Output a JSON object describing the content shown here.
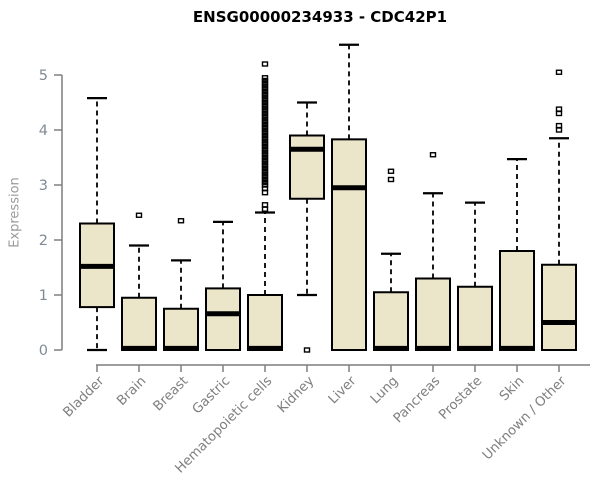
{
  "chart_data": {
    "type": "boxplot",
    "title": "ENSG00000234933 - CDC42P1",
    "xlabel": "",
    "ylabel": "Expression",
    "ylim": [
      0,
      5.6
    ],
    "yticks": [
      0,
      1,
      2,
      3,
      4,
      5
    ],
    "grid": false,
    "legend": "none",
    "box_fill": "#ebe5ca",
    "box_stroke": "#000000",
    "axis_color": "#7f7f7f",
    "tick_label_color": "#808b96",
    "category_label_color": "#7f7f7f",
    "categories": [
      "Bladder",
      "Brain",
      "Breast",
      "Gastric",
      "Hematopoietic cells",
      "Kidney",
      "Liver",
      "Lung",
      "Pancreas",
      "Prostate",
      "Skin",
      "Unknown / Other"
    ],
    "boxes": [
      {
        "category": "Bladder",
        "whisker_low": 0,
        "q1": 0.78,
        "median": 1.52,
        "q3": 2.3,
        "whisker_high": 4.58,
        "outliers": []
      },
      {
        "category": "Brain",
        "whisker_low": 0,
        "q1": 0,
        "median": 0.03,
        "q3": 0.95,
        "whisker_high": 1.9,
        "outliers": [
          2.45
        ]
      },
      {
        "category": "Breast",
        "whisker_low": 0,
        "q1": 0,
        "median": 0.03,
        "q3": 0.75,
        "whisker_high": 1.63,
        "outliers": [
          2.35
        ]
      },
      {
        "category": "Gastric",
        "whisker_low": 0,
        "q1": 0,
        "median": 0.66,
        "q3": 1.12,
        "whisker_high": 2.33,
        "outliers": []
      },
      {
        "category": "Hematopoietic cells",
        "whisker_low": 0,
        "q1": 0,
        "median": 0.03,
        "q3": 1.0,
        "whisker_high": 2.5,
        "outliers": [
          2.56,
          2.64,
          2.86,
          2.94,
          3.0,
          3.05,
          3.1,
          3.15,
          3.2,
          3.25,
          3.3,
          3.35,
          3.4,
          3.45,
          3.5,
          3.55,
          3.6,
          3.65,
          3.7,
          3.75,
          3.8,
          3.85,
          3.9,
          3.95,
          4.0,
          4.05,
          4.1,
          4.15,
          4.2,
          4.25,
          4.3,
          4.35,
          4.4,
          4.45,
          4.5,
          4.55,
          4.6,
          4.65,
          4.7,
          4.75,
          4.8,
          4.85,
          4.9,
          4.95,
          5.2
        ]
      },
      {
        "category": "Kidney",
        "whisker_low": 1.0,
        "q1": 2.75,
        "median": 3.65,
        "q3": 3.9,
        "whisker_high": 4.5,
        "outliers": [
          0.0
        ]
      },
      {
        "category": "Liver",
        "whisker_low": 0,
        "q1": 0,
        "median": 2.95,
        "q3": 3.83,
        "whisker_high": 5.55,
        "outliers": []
      },
      {
        "category": "Lung",
        "whisker_low": 0,
        "q1": 0,
        "median": 0.03,
        "q3": 1.05,
        "whisker_high": 1.75,
        "outliers": [
          3.1,
          3.25
        ]
      },
      {
        "category": "Pancreas",
        "whisker_low": 0,
        "q1": 0,
        "median": 0.03,
        "q3": 1.3,
        "whisker_high": 2.85,
        "outliers": [
          3.55
        ]
      },
      {
        "category": "Prostate",
        "whisker_low": 0,
        "q1": 0,
        "median": 0.03,
        "q3": 1.15,
        "whisker_high": 2.68,
        "outliers": []
      },
      {
        "category": "Skin",
        "whisker_low": 0,
        "q1": 0,
        "median": 0.03,
        "q3": 1.8,
        "whisker_high": 3.47,
        "outliers": []
      },
      {
        "category": "Unknown / Other",
        "whisker_low": 0,
        "q1": 0,
        "median": 0.5,
        "q3": 1.55,
        "whisker_high": 3.85,
        "outliers": [
          4.0,
          4.08,
          4.3,
          4.38,
          5.05
        ]
      }
    ]
  }
}
